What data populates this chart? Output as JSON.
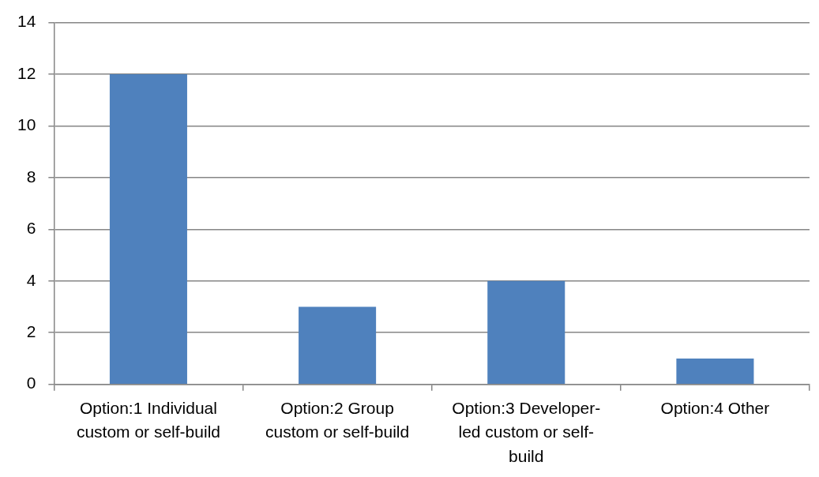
{
  "chart_data": {
    "type": "bar",
    "categories": [
      "Option:1 Individual custom or self-build",
      "Option:2 Group custom or self-build",
      "Option:3 Developer-led custom or self-build",
      "Option:4 Other"
    ],
    "values": [
      12,
      3,
      4,
      1
    ],
    "color": "#4f81bd",
    "ylim": [
      0,
      14
    ],
    "yticks": [
      0,
      2,
      4,
      6,
      8,
      10,
      12,
      14
    ],
    "grid": "y"
  }
}
